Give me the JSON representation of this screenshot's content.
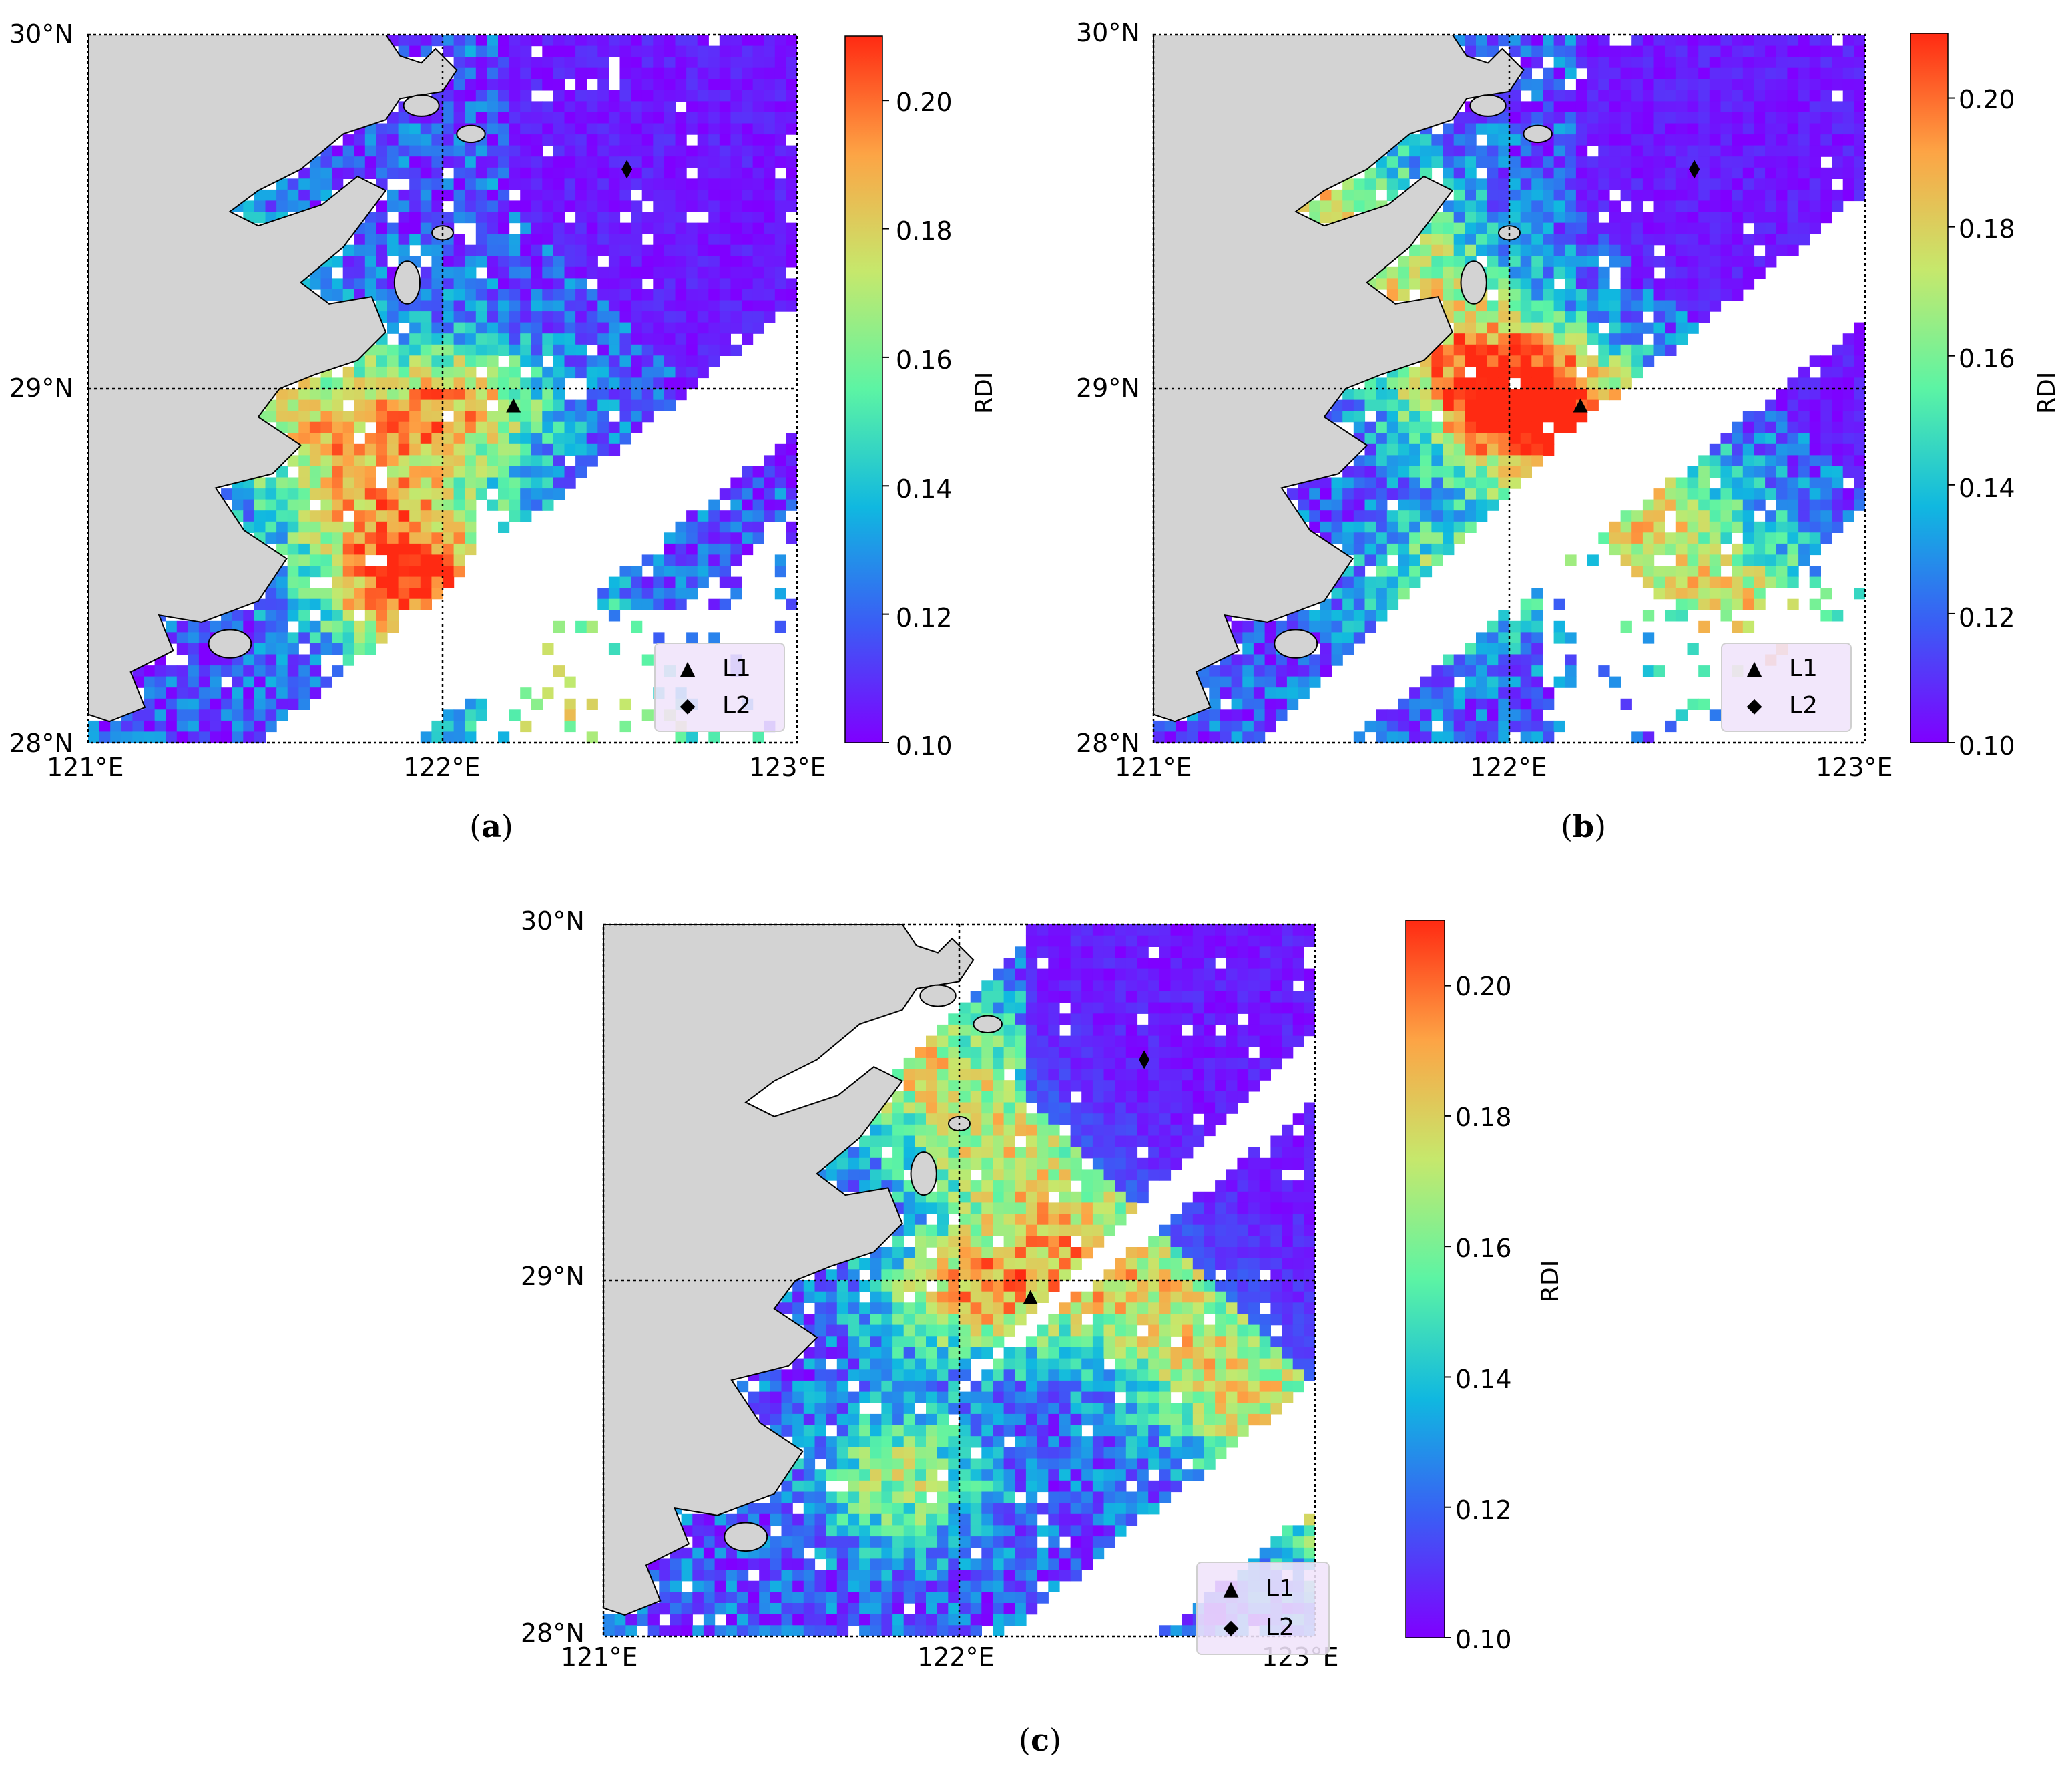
{
  "figure": {
    "panels": [
      {
        "id": "a",
        "caption": "a",
        "lat_labels": [
          "30°N",
          "29°N",
          "28°N"
        ],
        "lon_labels": [
          "121°E",
          "122°E",
          "123°E"
        ],
        "colorbar": {
          "label": "RDI",
          "ticks": [
            "0.20",
            "0.18",
            "0.16",
            "0.14",
            "0.12",
            "0.10"
          ]
        },
        "legend": [
          {
            "symbol": "▲",
            "label": "L1"
          },
          {
            "symbol": "◆",
            "label": "L2"
          }
        ]
      },
      {
        "id": "b",
        "caption": "b",
        "lat_labels": [
          "30°N",
          "29°N",
          "28°N"
        ],
        "lon_labels": [
          "121°E",
          "122°E",
          "123°E"
        ],
        "colorbar": {
          "label": "RDI",
          "ticks": [
            "0.20",
            "0.18",
            "0.16",
            "0.14",
            "0.12",
            "0.10"
          ]
        },
        "legend": [
          {
            "symbol": "▲",
            "label": "L1"
          },
          {
            "symbol": "◆",
            "label": "L2"
          }
        ]
      },
      {
        "id": "c",
        "caption": "c",
        "lat_labels": [
          "30°N",
          "29°N",
          "28°N"
        ],
        "lon_labels": [
          "121°E",
          "122°E",
          "123°E"
        ],
        "colorbar": {
          "label": "RDI",
          "ticks": [
            "0.20",
            "0.18",
            "0.16",
            "0.14",
            "0.12",
            "0.10"
          ]
        },
        "legend": [
          {
            "symbol": "▲",
            "label": "L1"
          },
          {
            "symbol": "◆",
            "label": "L2"
          }
        ]
      }
    ],
    "colormap": {
      "name": "rainbow",
      "min": 0.1,
      "max": 0.21,
      "stops": [
        "#7f00ff",
        "#3b5cf5",
        "#10b8e0",
        "#5cf4a4",
        "#c6e86c",
        "#fda445",
        "#ff2a12"
      ]
    },
    "land_color": "#d3d3d3",
    "no_data_color": "#ffffff",
    "stations": [
      {
        "name": "L1",
        "lon": 122.2,
        "lat": 28.95
      },
      {
        "name": "L2",
        "lon": 122.52,
        "lat": 29.62
      }
    ],
    "extent": {
      "lon": [
        121,
        123
      ],
      "lat": [
        28,
        30
      ]
    },
    "gridlines": {
      "lon": 122,
      "lat": 29
    }
  }
}
